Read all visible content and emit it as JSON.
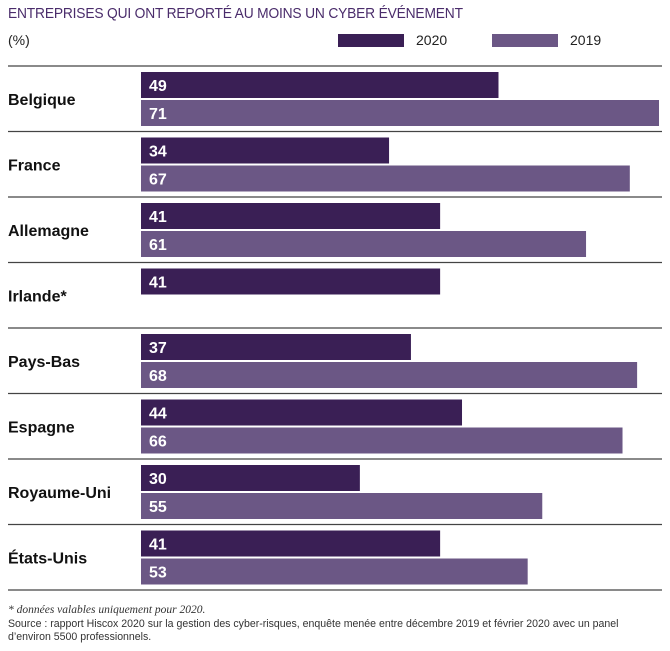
{
  "title": "ENTREPRISES QUI ONT REPORTÉ AU MOINS UN CYBER ÉVÉNEMENT",
  "unit": "(%)",
  "legend": [
    {
      "label": "2020",
      "color": "#3a1f55"
    },
    {
      "label": "2019",
      "color": "#6b5785"
    }
  ],
  "chart_data": {
    "type": "bar",
    "orientation": "horizontal",
    "categories": [
      "Belgique",
      "France",
      "Allemagne",
      "Irlande*",
      "Pays-Bas",
      "Espagne",
      "Royaume-Uni",
      "États-Unis"
    ],
    "series": [
      {
        "name": "2020",
        "values": [
          49,
          34,
          41,
          41,
          37,
          44,
          30,
          41
        ]
      },
      {
        "name": "2019",
        "values": [
          71,
          67,
          61,
          null,
          68,
          66,
          55,
          53
        ]
      }
    ],
    "xlim": [
      0,
      71
    ],
    "grid": false,
    "legend_position": "top-right",
    "data_labels": true
  },
  "footnote": "* données valables uniquement pour 2020.",
  "source": "Source : rapport Hiscox 2020 sur la gestion des cyber-risques, enquête menée entre décembre 2019 et février 2020 avec un panel d’environ 5500 professionnels."
}
